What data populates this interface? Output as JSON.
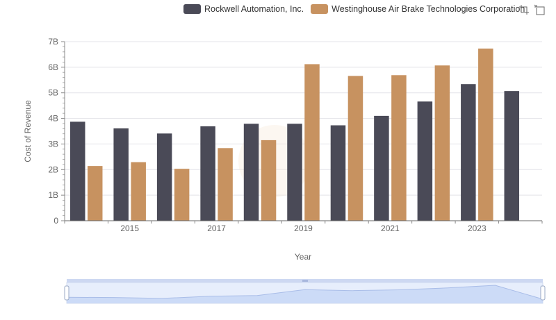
{
  "chart_data": {
    "type": "bar",
    "x": [
      "2014",
      "2015",
      "2016",
      "2017",
      "2018",
      "2019",
      "2020",
      "2021",
      "2022",
      "2023",
      "2024"
    ],
    "x_tick_labels": [
      "2015",
      "2017",
      "2019",
      "2021",
      "2023"
    ],
    "xlabel": "Year",
    "ylabel": "Cost of Revenue",
    "ylim": [
      0,
      7000000000
    ],
    "y_tick_labels": [
      "0",
      "1B",
      "2B",
      "3B",
      "4B",
      "5B",
      "6B",
      "7B"
    ],
    "grid": true,
    "legend_position": "top-right",
    "series": [
      {
        "name": "Rockwell Automation, Inc.",
        "color": "#4a4a57",
        "values": [
          3870000000,
          3610000000,
          3410000000,
          3690000000,
          3790000000,
          3790000000,
          3730000000,
          4100000000,
          4660000000,
          5340000000,
          5070000000
        ]
      },
      {
        "name": "Westinghouse Air Brake Technologies Corporation",
        "color": "#c79260",
        "values": [
          2140000000,
          2290000000,
          2030000000,
          2840000000,
          3150000000,
          6120000000,
          5660000000,
          5690000000,
          6070000000,
          6730000000,
          null
        ]
      }
    ]
  },
  "toolbox": {
    "icons": [
      "zoom-icon",
      "restore-icon"
    ]
  },
  "data_zoom": {
    "range_start": 0,
    "range_end": 100
  }
}
